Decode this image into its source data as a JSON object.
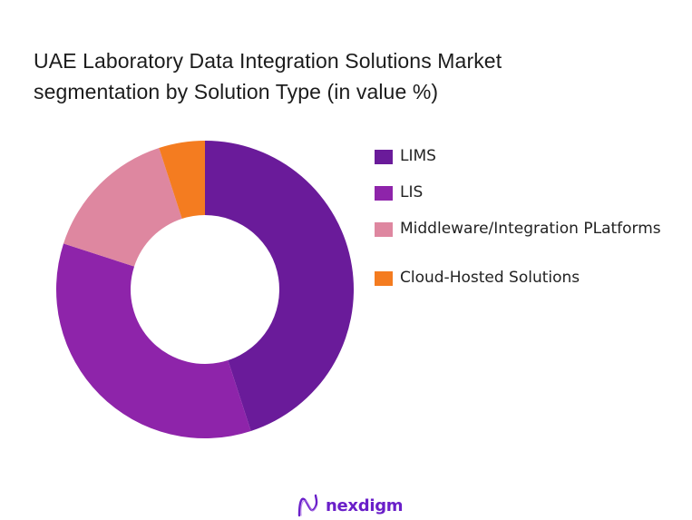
{
  "title": {
    "line1": "UAE Laboratory Data Integration Solutions Market",
    "line2": "segmentation by Solution Type (in value %)"
  },
  "legend": {
    "items": [
      {
        "label": "LIMS",
        "color": "#6a1b9a"
      },
      {
        "label": "LIS",
        "color": "#8e24aa"
      },
      {
        "label": "Middleware/Integration PLatforms",
        "color": "#de87a0"
      },
      {
        "label": "Cloud-Hosted Solutions",
        "color": "#f47c20"
      }
    ]
  },
  "brand": {
    "name": "nexdigm",
    "color": "#6a1fc9"
  },
  "chart_data": {
    "type": "pie",
    "variant": "donut",
    "title": "UAE Laboratory Data Integration Solutions Market segmentation by Solution Type (in value %)",
    "categories": [
      "LIMS",
      "LIS",
      "Middleware/Integration PLatforms",
      "Cloud-Hosted Solutions"
    ],
    "values": [
      45,
      35,
      15,
      5
    ],
    "colors": [
      "#6a1b9a",
      "#8e24aa",
      "#de87a0",
      "#f47c20"
    ],
    "start_angle_deg": -90,
    "direction": "clockwise",
    "legend_position": "right",
    "data_labels": false
  }
}
